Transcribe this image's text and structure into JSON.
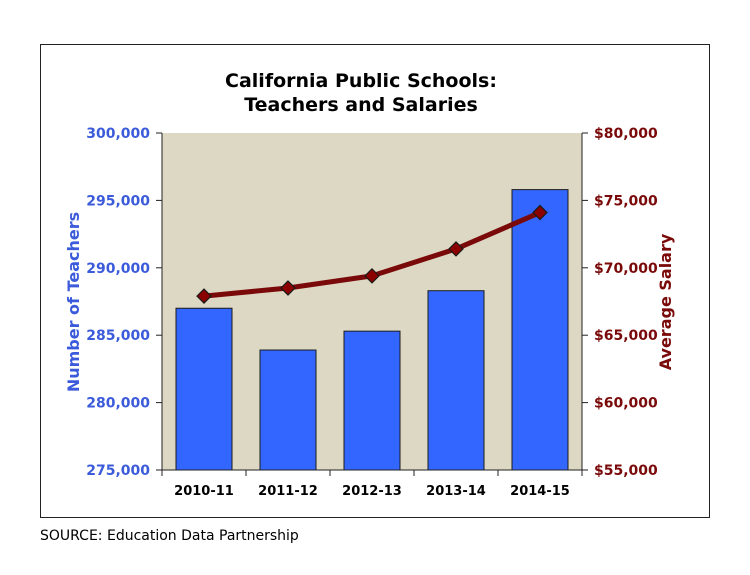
{
  "chart_data": {
    "type": "bar",
    "title": "California Public Schools:",
    "subtitle": "Teachers and Salaries",
    "categories": [
      "2010-11",
      "2011-12",
      "2012-13",
      "2013-14",
      "2014-15"
    ],
    "series": [
      {
        "name": "Number of Teachers",
        "type": "bar",
        "axis": "left",
        "color": "#3366ff",
        "values": [
          287000,
          283900,
          285300,
          288300,
          295800
        ]
      },
      {
        "name": "Average Salary",
        "type": "line",
        "axis": "right",
        "color": "#7a0a0a",
        "values": [
          67900,
          68500,
          69400,
          71400,
          74100
        ]
      }
    ],
    "ylabel": "Number of Teachers",
    "y2label": "Average Salary",
    "ylim": [
      275000,
      300000
    ],
    "y2lim": [
      55000,
      80000
    ],
    "yticks": [
      "275,000",
      "280,000",
      "285,000",
      "290,000",
      "295,000",
      "300,000"
    ],
    "y2ticks": [
      "$55,000",
      "$60,000",
      "$65,000",
      "$70,000",
      "$75,000",
      "$80,000"
    ],
    "plot_background": "#ddd8c4",
    "grid": false,
    "legend": "none"
  },
  "source": "SOURCE: Education Data Partnership"
}
